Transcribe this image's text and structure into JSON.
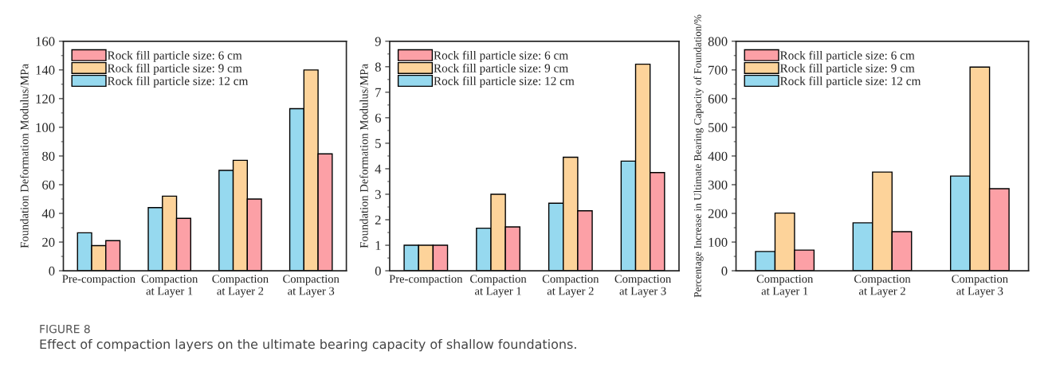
{
  "chart_data": [
    {
      "type": "bar",
      "ylabel": "Foundation Deformation Modulus/MPa",
      "categories": [
        "Pre-compaction",
        "Compaction\nat Layer 1",
        "Compaction\nat Layer 2",
        "Compaction\nat Layer 3"
      ],
      "series": [
        {
          "name": "Rock fill particle size: 12 cm",
          "color": "#96d9ef",
          "values": [
            26.5,
            44,
            70,
            113
          ]
        },
        {
          "name": "Rock fill particle size: 9 cm",
          "color": "#fdd39a",
          "values": [
            17.5,
            52,
            77,
            140
          ]
        },
        {
          "name": "Rock fill particle size: 6 cm",
          "color": "#fca0a6",
          "values": [
            21,
            36.5,
            50,
            81.5
          ]
        }
      ],
      "ylim": [
        0,
        160
      ],
      "yticks": [
        0,
        {
          "value": 10,
          "label": null
        },
        20,
        {
          "value": 30,
          "label": null
        },
        40,
        {
          "value": 50,
          "label": null
        },
        60,
        {
          "value": 70,
          "label": null
        },
        80,
        {
          "value": 90,
          "label": null
        },
        100,
        {
          "value": 110,
          "label": null
        },
        120,
        {
          "value": 130,
          "label": null
        },
        140,
        {
          "value": 150,
          "label": null
        },
        160
      ],
      "legend": "top left",
      "grid": false,
      "annotations": [
        "FIGURE 8",
        "Effect of compaction layers on the ultimate bearing capacity of shallow foundations."
      ]
    },
    {
      "type": "bar",
      "ylabel": "Foundation Deformation Modulus/MPa",
      "categories": [
        "Pre-compaction",
        "Compaction\nat Layer 1",
        "Compaction\nat Layer 2",
        "Compaction\nat Layer 3"
      ],
      "series": [
        {
          "name": "Rock fill particle size: 12 cm",
          "color": "#96d9ef",
          "values": [
            1,
            1.67,
            2.65,
            4.3
          ]
        },
        {
          "name": "Rock fill particle size: 9 cm",
          "color": "#fdd39a",
          "values": [
            1,
            3.0,
            4.45,
            8.1
          ]
        },
        {
          "name": "Rock fill particle size: 6 cm",
          "color": "#fca0a6",
          "values": [
            1,
            1.72,
            2.35,
            3.85
          ]
        }
      ],
      "ylim": [
        0,
        9
      ],
      "yticks": [
        0,
        {
          "value": 0.5,
          "label": null
        },
        1,
        {
          "value": 1.5,
          "label": null
        },
        2,
        {
          "value": 2.5,
          "label": null
        },
        3,
        {
          "value": 3.5,
          "label": null
        },
        4,
        {
          "value": 4.5,
          "label": null
        },
        5,
        {
          "value": 5.5,
          "label": null
        },
        6,
        {
          "value": 6.5,
          "label": null
        },
        7,
        {
          "value": 7.5,
          "label": null
        },
        8,
        {
          "value": 8.5,
          "label": null
        },
        9
      ],
      "legend": "top left",
      "grid": false
    },
    {
      "type": "bar",
      "ylabel": "Percentage Increase in Ultimate Bearing Capacity of Foundation/%",
      "categories": [
        "Compaction\nat Layer 1",
        "Compaction\nat Layer 2",
        "Compaction\nat Layer 3"
      ],
      "series": [
        {
          "name": "Rock fill particle size: 12 cm",
          "color": "#96d9ef",
          "values": [
            67,
            167,
            330
          ]
        },
        {
          "name": "Rock fill particle size: 9 cm",
          "color": "#fdd39a",
          "values": [
            201,
            344,
            710
          ]
        },
        {
          "name": "Rock fill particle size: 6 cm",
          "color": "#fca0a6",
          "values": [
            72,
            136,
            286
          ]
        }
      ],
      "ylim": [
        0,
        800
      ],
      "yticks": [
        0,
        {
          "value": 50,
          "label": null
        },
        100,
        {
          "value": 150,
          "label": null
        },
        200,
        {
          "value": 250,
          "label": null
        },
        300,
        {
          "value": 350,
          "label": null
        },
        400,
        {
          "value": 450,
          "label": null
        },
        500,
        {
          "value": 550,
          "label": null
        },
        600,
        {
          "value": 650,
          "label": null
        },
        700,
        {
          "value": 750,
          "label": null
        },
        800
      ],
      "legend": "top left",
      "grid": false
    }
  ]
}
